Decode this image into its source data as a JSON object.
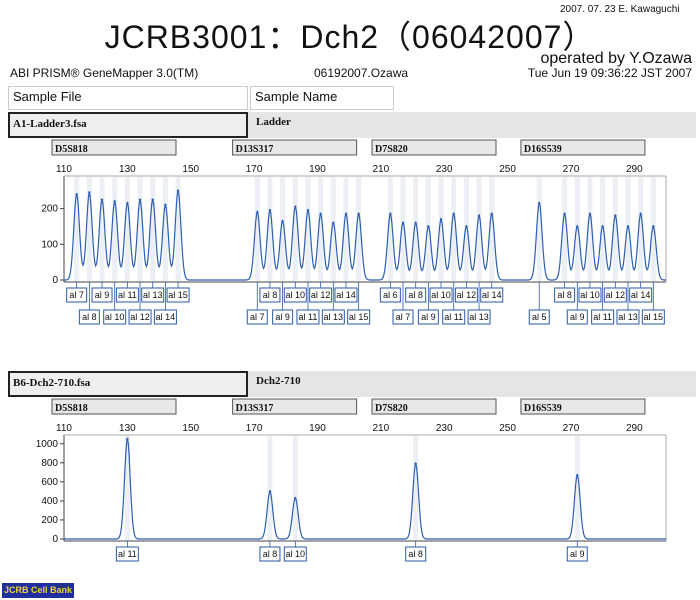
{
  "header": {
    "stamp": "2007. 07. 23 E. Kawaguchi",
    "title": "JCRB3001：Dch2（06042007）",
    "operated_by": "operated by Y.Ozawa",
    "software": "ABI PRISM® GeneMapper 3.0(TM)",
    "run_id": "06192007.Ozawa",
    "datetime": "Tue Jun 19 09:36:22 JST 2007",
    "col_sample_file": "Sample File",
    "col_sample_name": "Sample Name"
  },
  "samples": [
    {
      "file": "A1-Ladder3.fsa",
      "name": "Ladder"
    },
    {
      "file": "B6-Dch2-710.fsa",
      "name": "Dch2-710"
    }
  ],
  "logo": "JCRB Cell Bank",
  "chart_data": [
    {
      "type": "line",
      "title": "A1-Ladder3.fsa",
      "x_ticks": [
        110,
        130,
        150,
        170,
        190,
        210,
        230,
        250,
        270,
        290
      ],
      "y_ticks": [
        0,
        100,
        200
      ],
      "ylim": [
        0,
        280
      ],
      "xlim": [
        110,
        300
      ],
      "markers": [
        {
          "name": "D5S818",
          "range": [
            110,
            138
          ]
        },
        {
          "name": "D13S317",
          "range": [
            167,
            194
          ]
        },
        {
          "name": "D7S820",
          "range": [
            211,
            238
          ]
        },
        {
          "name": "D16S539",
          "range": [
            258,
            294
          ]
        }
      ],
      "peaks": [
        {
          "x": 114,
          "y": 240,
          "label": "al 7"
        },
        {
          "x": 118,
          "y": 245,
          "label": "al 8"
        },
        {
          "x": 122,
          "y": 225,
          "label": "al 9"
        },
        {
          "x": 126,
          "y": 220,
          "label": "al 10"
        },
        {
          "x": 130,
          "y": 215,
          "label": "al 11"
        },
        {
          "x": 134,
          "y": 225,
          "label": "al 12"
        },
        {
          "x": 138,
          "y": 225,
          "label": "al 13"
        },
        {
          "x": 142,
          "y": 210,
          "label": "al 14"
        },
        {
          "x": 146,
          "y": 250,
          "label": "al 15"
        },
        {
          "x": 171,
          "y": 190,
          "label": "al 7"
        },
        {
          "x": 175,
          "y": 195,
          "label": "al 8"
        },
        {
          "x": 179,
          "y": 165,
          "label": "al 9"
        },
        {
          "x": 183,
          "y": 205,
          "label": "al 10"
        },
        {
          "x": 187,
          "y": 195,
          "label": "al 11"
        },
        {
          "x": 191,
          "y": 185,
          "label": "al 12"
        },
        {
          "x": 195,
          "y": 160,
          "label": "al 13"
        },
        {
          "x": 199,
          "y": 185,
          "label": "al 14"
        },
        {
          "x": 203,
          "y": 185,
          "label": "al 15"
        },
        {
          "x": 213,
          "y": 185,
          "label": "al 6"
        },
        {
          "x": 217,
          "y": 160,
          "label": "al 7"
        },
        {
          "x": 221,
          "y": 160,
          "label": "al 8"
        },
        {
          "x": 225,
          "y": 150,
          "label": "al 9"
        },
        {
          "x": 229,
          "y": 170,
          "label": "al 10"
        },
        {
          "x": 233,
          "y": 185,
          "label": "al 11"
        },
        {
          "x": 237,
          "y": 150,
          "label": "al 12"
        },
        {
          "x": 241,
          "y": 180,
          "label": "al 13"
        },
        {
          "x": 245,
          "y": 185,
          "label": "al 14"
        },
        {
          "x": 260,
          "y": 215,
          "label": "al 5"
        },
        {
          "x": 268,
          "y": 185,
          "label": "al 8"
        },
        {
          "x": 272,
          "y": 150,
          "label": "al 9"
        },
        {
          "x": 276,
          "y": 185,
          "label": "al 10"
        },
        {
          "x": 280,
          "y": 150,
          "label": "al 11"
        },
        {
          "x": 284,
          "y": 180,
          "label": "al 12"
        },
        {
          "x": 288,
          "y": 150,
          "label": "al 13"
        },
        {
          "x": 292,
          "y": 185,
          "label": "al 14"
        },
        {
          "x": 296,
          "y": 150,
          "label": "al 15"
        }
      ]
    },
    {
      "type": "line",
      "title": "B6-Dch2-710.fsa",
      "x_ticks": [
        110,
        130,
        150,
        170,
        190,
        210,
        230,
        250,
        270,
        290
      ],
      "y_ticks": [
        0,
        200,
        400,
        600,
        800,
        1000
      ],
      "ylim": [
        0,
        1050
      ],
      "xlim": [
        110,
        300
      ],
      "markers": [
        {
          "name": "D5S818",
          "range": [
            110,
            138
          ]
        },
        {
          "name": "D13S317",
          "range": [
            167,
            194
          ]
        },
        {
          "name": "D7S820",
          "range": [
            211,
            238
          ]
        },
        {
          "name": "D16S539",
          "range": [
            258,
            294
          ]
        }
      ],
      "peaks": [
        {
          "x": 130,
          "y": 1050,
          "label": "al 11"
        },
        {
          "x": 175,
          "y": 500,
          "label": "al 8"
        },
        {
          "x": 183,
          "y": 430,
          "label": "al 10"
        },
        {
          "x": 221,
          "y": 790,
          "label": "al 8"
        },
        {
          "x": 272,
          "y": 670,
          "label": "al 9"
        }
      ]
    }
  ]
}
